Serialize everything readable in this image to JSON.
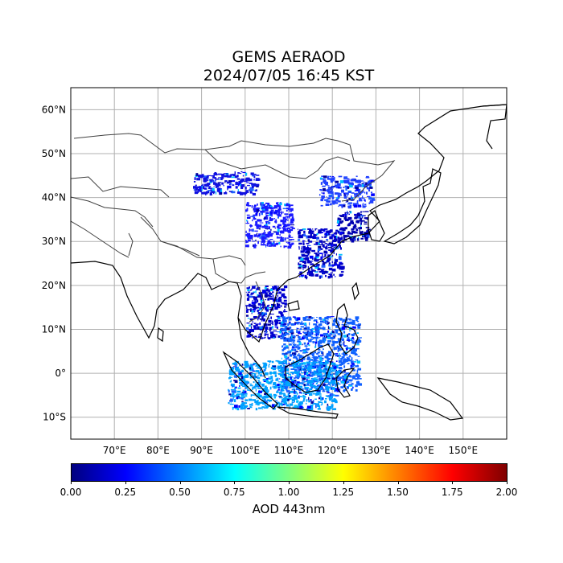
{
  "title": {
    "line1": "GEMS AERAOD",
    "line2": "2024/07/05 16:45 KST"
  },
  "map": {
    "projection": "PlateCarree",
    "lon_range_deg": [
      60,
      160
    ],
    "lat_range_deg": [
      -15,
      65
    ],
    "gridlines": true,
    "lat_ticks": [
      "60°N",
      "50°N",
      "40°N",
      "30°N",
      "20°N",
      "10°N",
      "0°",
      "10°S"
    ],
    "lat_values": [
      60,
      50,
      40,
      30,
      20,
      10,
      0,
      -10
    ],
    "lon_ticks": [
      "70°E",
      "80°E",
      "90°E",
      "100°E",
      "110°E",
      "120°E",
      "130°E",
      "140°E",
      "150°E"
    ],
    "lon_values": [
      70,
      80,
      90,
      100,
      110,
      120,
      130,
      140,
      150
    ],
    "coastline_color": "#000000",
    "border_color": "#404040",
    "aod_patches": [
      {
        "region": "Korea/Yellow Sea",
        "lon": [
          121,
          128
        ],
        "lat": [
          30,
          37
        ],
        "level": "low",
        "color": "#0000b0"
      },
      {
        "region": "East China",
        "lon": [
          112,
          122
        ],
        "lat": [
          22,
          33
        ],
        "level": "low",
        "color": "#0000c8"
      },
      {
        "region": "Mongolia/Gobi",
        "lon": [
          88,
          103
        ],
        "lat": [
          41,
          46
        ],
        "level": "low",
        "color": "#1010e0"
      },
      {
        "region": "Tibet",
        "lon": [
          100,
          111
        ],
        "lat": [
          29,
          39
        ],
        "level": "low",
        "color": "#1a1aff"
      },
      {
        "region": "NE China",
        "lon": [
          117,
          129
        ],
        "lat": [
          38,
          45
        ],
        "level": "low",
        "color": "#2040ff"
      },
      {
        "region": "Indochina",
        "lon": [
          100,
          109
        ],
        "lat": [
          8,
          20
        ],
        "level": "low",
        "color": "#0000d0"
      },
      {
        "region": "Borneo/Philippines",
        "lon": [
          108,
          126
        ],
        "lat": [
          -4,
          13
        ],
        "level": "low-moderate",
        "color": "#1060ff"
      },
      {
        "region": "Sumatra/Java",
        "lon": [
          96,
          121
        ],
        "lat": [
          -8,
          3
        ],
        "level": "low-moderate",
        "color": "#00a0ff"
      }
    ]
  },
  "colorbar": {
    "ticks": [
      "0.00",
      "0.25",
      "0.50",
      "0.75",
      "1.00",
      "1.25",
      "1.50",
      "1.75",
      "2.00"
    ],
    "range": [
      0,
      2
    ],
    "colormap": "jet",
    "label": "AOD 443nm"
  }
}
